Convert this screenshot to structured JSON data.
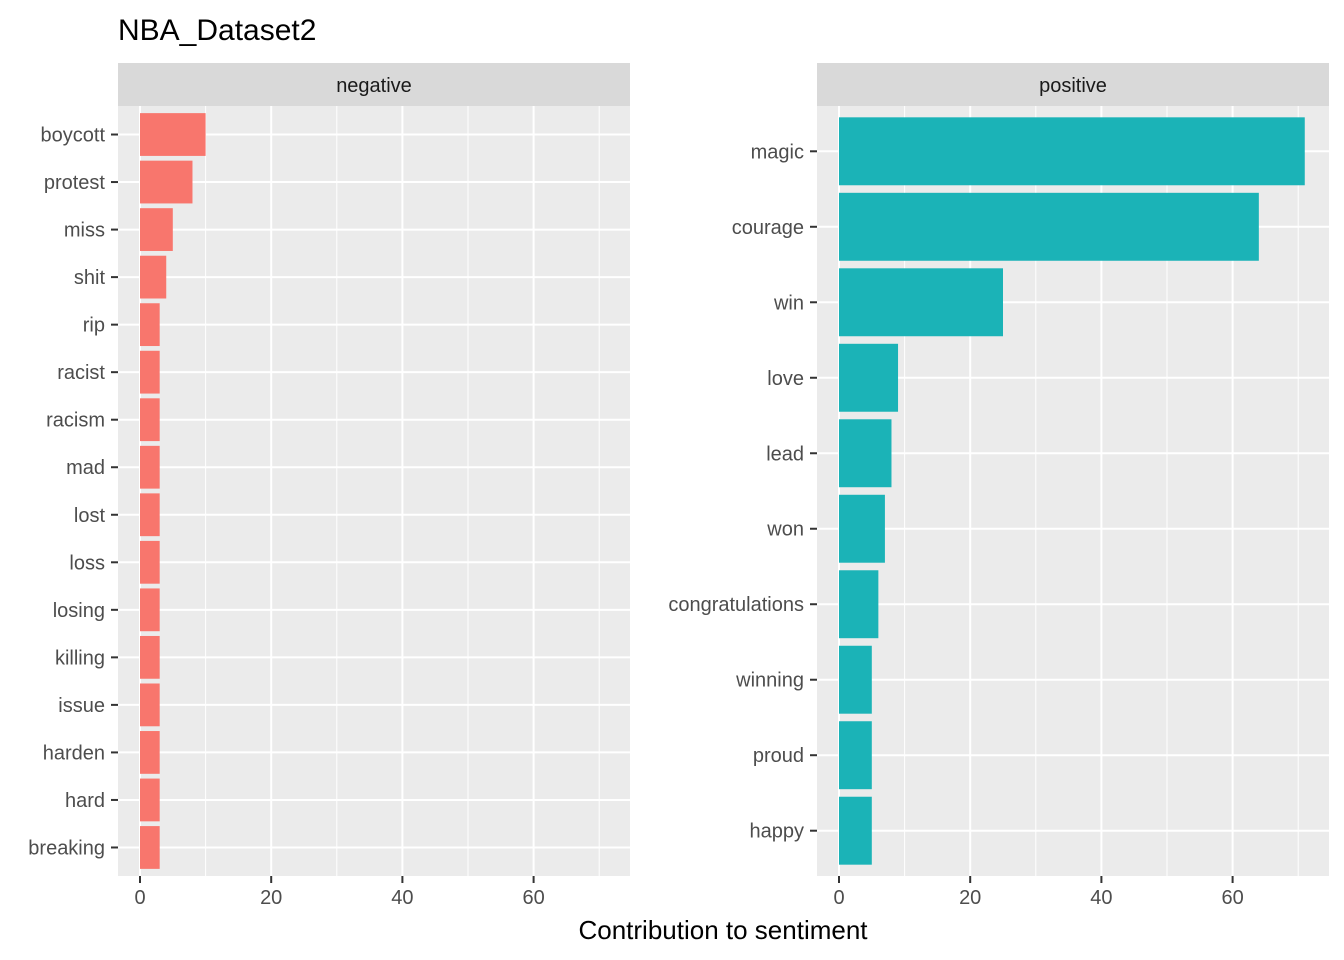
{
  "chart_data": {
    "type": "bar",
    "orientation": "horizontal",
    "title": "NBA_Dataset2",
    "xlabel": "Contribution to sentiment",
    "ylabel": "",
    "grid": true,
    "legend": "none",
    "xlim": [
      0,
      72
    ],
    "xticks": [
      "0",
      "20",
      "40",
      "60"
    ],
    "xtick_values": [
      0,
      20,
      40,
      60
    ],
    "panels": [
      {
        "label": "negative",
        "color": "#F8766D",
        "categories": [
          "boycott",
          "protest",
          "miss",
          "shit",
          "rip",
          "racist",
          "racism",
          "mad",
          "lost",
          "loss",
          "losing",
          "killing",
          "issue",
          "harden",
          "hard",
          "breaking"
        ],
        "values": [
          10,
          8,
          5,
          4,
          3,
          3,
          3,
          3,
          3,
          3,
          3,
          3,
          3,
          3,
          3,
          3
        ]
      },
      {
        "label": "positive",
        "color": "#1BB3B7",
        "categories": [
          "magic",
          "courage",
          "win",
          "love",
          "lead",
          "won",
          "congratulations",
          "winning",
          "proud",
          "happy"
        ],
        "values": [
          71,
          64,
          25,
          9,
          8,
          7,
          6,
          5,
          5,
          5
        ]
      }
    ]
  }
}
